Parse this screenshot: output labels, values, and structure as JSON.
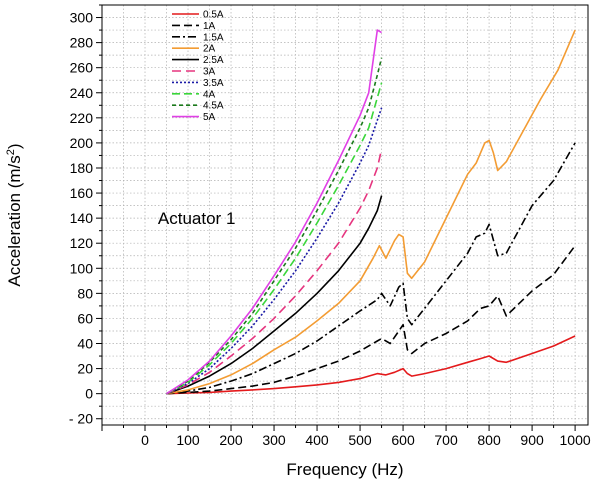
{
  "chart_data": {
    "type": "line",
    "title": "",
    "xlabel": "Frequency (Hz)",
    "ylabel": "Acceleration (m/s",
    "ylabel_sup": "2",
    "ylabel_close": ")",
    "xlim": [
      -100,
      1030
    ],
    "ylim": [
      -25,
      310
    ],
    "xticks": [
      0,
      100,
      200,
      300,
      400,
      500,
      600,
      700,
      800,
      900,
      1000
    ],
    "yticks": [
      -20,
      0,
      20,
      40,
      60,
      80,
      100,
      120,
      140,
      160,
      180,
      200,
      220,
      240,
      260,
      280,
      300
    ],
    "grid": true,
    "legend_position": "top-left",
    "annotation": "Actuator 1",
    "series": [
      {
        "name": "0.5A",
        "color": "#e41a1c",
        "dash": "solid",
        "x": [
          50,
          100,
          150,
          200,
          250,
          300,
          350,
          400,
          450,
          500,
          540,
          560,
          580,
          600,
          610,
          620,
          650,
          700,
          750,
          780,
          800,
          820,
          840,
          900,
          950,
          1000
        ],
        "y": [
          0,
          0.5,
          1,
          2,
          3,
          4,
          5.5,
          7,
          9,
          12,
          16,
          15,
          17,
          20,
          16,
          14,
          16,
          20,
          25,
          28,
          30,
          26,
          25,
          32,
          38,
          46
        ]
      },
      {
        "name": "1A",
        "color": "#000000",
        "dash": "8,4",
        "x": [
          50,
          100,
          150,
          200,
          250,
          300,
          350,
          400,
          450,
          500,
          540,
          550,
          570,
          590,
          600,
          610,
          620,
          650,
          700,
          750,
          780,
          800,
          820,
          840,
          900,
          950,
          1000
        ],
        "y": [
          0,
          1,
          2,
          4,
          6,
          9,
          14,
          20,
          26,
          34,
          42,
          44,
          40,
          50,
          55,
          35,
          32,
          40,
          48,
          58,
          68,
          70,
          78,
          62,
          82,
          95,
          118
        ]
      },
      {
        "name": "1.5A",
        "color": "#000000",
        "dash": "8,3,2,3",
        "x": [
          50,
          100,
          150,
          200,
          250,
          300,
          350,
          400,
          450,
          500,
          540,
          550,
          570,
          590,
          600,
          610,
          620,
          650,
          700,
          750,
          770,
          790,
          800,
          820,
          840,
          900,
          950,
          1000
        ],
        "y": [
          0,
          2,
          5,
          10,
          16,
          24,
          32,
          42,
          54,
          66,
          75,
          80,
          70,
          85,
          88,
          60,
          55,
          68,
          90,
          112,
          125,
          128,
          135,
          110,
          112,
          150,
          170,
          200
        ]
      },
      {
        "name": "2A",
        "color": "#f39c33",
        "dash": "solid",
        "x": [
          50,
          100,
          150,
          200,
          250,
          300,
          350,
          400,
          450,
          500,
          530,
          545,
          560,
          580,
          590,
          600,
          610,
          620,
          650,
          700,
          750,
          770,
          790,
          800,
          810,
          820,
          840,
          880,
          920,
          960,
          1000
        ],
        "y": [
          0,
          3,
          8,
          15,
          24,
          35,
          45,
          58,
          72,
          90,
          108,
          118,
          108,
          122,
          127,
          125,
          96,
          92,
          105,
          140,
          175,
          184,
          200,
          202,
          192,
          178,
          185,
          210,
          235,
          258,
          290
        ]
      },
      {
        "name": "2.5A",
        "color": "#000000",
        "dash": "solid",
        "x": [
          50,
          100,
          150,
          200,
          250,
          300,
          350,
          400,
          450,
          500,
          520,
          540,
          550
        ],
        "y": [
          0,
          6,
          14,
          24,
          36,
          50,
          64,
          80,
          98,
          120,
          132,
          146,
          158
        ]
      },
      {
        "name": "3A",
        "color": "#e6357f",
        "dash": "9,5",
        "x": [
          50,
          100,
          150,
          200,
          250,
          300,
          350,
          400,
          450,
          500,
          520,
          540,
          550
        ],
        "y": [
          0,
          7,
          17,
          30,
          44,
          60,
          78,
          98,
          120,
          148,
          162,
          180,
          195
        ]
      },
      {
        "name": "3.5A",
        "color": "#1a1aa6",
        "dash": "2,2",
        "x": [
          50,
          100,
          150,
          200,
          250,
          300,
          350,
          400,
          450,
          500,
          520,
          540,
          550
        ],
        "y": [
          0,
          8,
          20,
          36,
          54,
          75,
          98,
          124,
          152,
          184,
          198,
          218,
          228
        ]
      },
      {
        "name": "4A",
        "color": "#3ad63a",
        "dash": "8,4",
        "x": [
          50,
          100,
          150,
          200,
          250,
          300,
          350,
          400,
          450,
          500,
          520,
          540,
          550
        ],
        "y": [
          0,
          9,
          23,
          40,
          60,
          83,
          108,
          136,
          166,
          198,
          212,
          236,
          248
        ]
      },
      {
        "name": "4.5A",
        "color": "#1b7a1b",
        "dash": "4,3",
        "x": [
          50,
          100,
          150,
          200,
          250,
          300,
          350,
          400,
          450,
          500,
          520,
          540,
          550
        ],
        "y": [
          0,
          10,
          25,
          43,
          64,
          90,
          116,
          146,
          178,
          212,
          228,
          254,
          268
        ]
      },
      {
        "name": "5A",
        "color": "#e040e6",
        "dash": "solid",
        "x": [
          50,
          100,
          150,
          200,
          250,
          300,
          350,
          400,
          450,
          500,
          520,
          540,
          550
        ],
        "y": [
          0,
          11,
          26,
          46,
          68,
          94,
          121,
          152,
          186,
          222,
          240,
          290,
          288
        ]
      }
    ]
  }
}
